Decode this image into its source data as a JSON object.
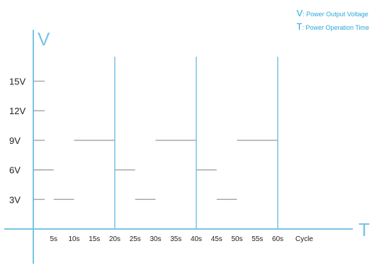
{
  "legend": {
    "v_key": "V",
    "v_text": ": Power  Output Voltage",
    "t_key": "T",
    "t_text": ": Power Operation Time"
  },
  "colors": {
    "axis": "#79c4e4",
    "grid": "#a9a9a9",
    "legend_text": "#2aa8dc",
    "label": "#222222"
  },
  "chart_data": {
    "type": "line",
    "title": "",
    "xlabel": "T",
    "ylabel": "V",
    "x_ticks": [
      "5s",
      "10s",
      "15s",
      "20s",
      "25s",
      "30s",
      "35s",
      "40s",
      "45s",
      "50s",
      "55s",
      "60s",
      "Cycle"
    ],
    "y_ticks": [
      "3V",
      "6V",
      "9V",
      "12V",
      "15V"
    ],
    "xlim": [
      0,
      70
    ],
    "ylim": [
      0,
      17
    ],
    "cycle_boundaries_s": [
      20,
      40,
      60
    ],
    "series": [
      {
        "segments": [
          {
            "start_s": 0,
            "end_s": 5,
            "voltage_v": 6
          },
          {
            "start_s": 5,
            "end_s": 10,
            "voltage_v": 3
          },
          {
            "start_s": 10,
            "end_s": 20,
            "voltage_v": 9
          },
          {
            "start_s": 20,
            "end_s": 25,
            "voltage_v": 6
          },
          {
            "start_s": 25,
            "end_s": 30,
            "voltage_v": 3
          },
          {
            "start_s": 30,
            "end_s": 40,
            "voltage_v": 9
          },
          {
            "start_s": 40,
            "end_s": 45,
            "voltage_v": 6
          },
          {
            "start_s": 45,
            "end_s": 50,
            "voltage_v": 3
          },
          {
            "start_s": 50,
            "end_s": 60,
            "voltage_v": 9
          }
        ]
      }
    ]
  }
}
